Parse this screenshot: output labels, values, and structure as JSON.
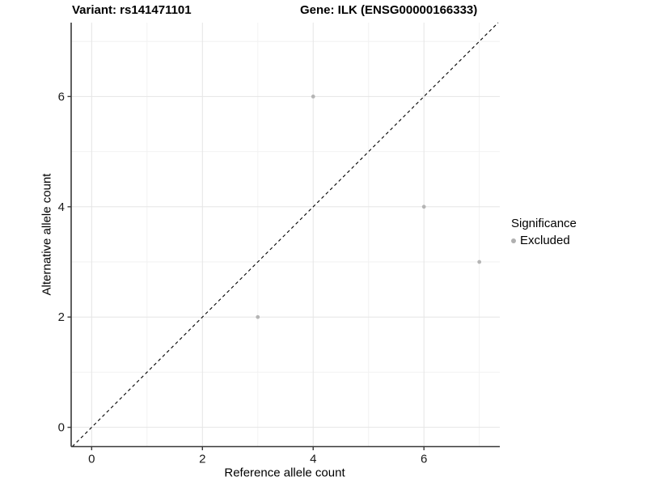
{
  "titles": {
    "left": "Variant: rs141471101",
    "right": "Gene: ILK (ENSG00000166333)"
  },
  "chart_data": {
    "type": "scatter",
    "title_left": "Variant: rs141471101",
    "title_right": "Gene: ILK (ENSG00000166333)",
    "xlabel": "Reference allele count",
    "ylabel": "Alternative allele count",
    "points": [
      {
        "x": 3,
        "y": 2
      },
      {
        "x": 4,
        "y": 6
      },
      {
        "x": 6,
        "y": 4
      },
      {
        "x": 7,
        "y": 3
      }
    ],
    "series_name": "Excluded",
    "x_ticks": [
      0,
      2,
      4,
      6
    ],
    "y_ticks": [
      0,
      2,
      4,
      6
    ],
    "x_minor_ticks": [
      1,
      3,
      5,
      7
    ],
    "y_minor_ticks": [
      1,
      3,
      5,
      7
    ],
    "xlim": [
      -0.37,
      7.37
    ],
    "ylim": [
      -0.35,
      7.34
    ],
    "grid": true,
    "reference_line": {
      "slope": 1,
      "intercept": 0,
      "style": "dashed",
      "color": "#000000"
    },
    "legend": {
      "position": "right",
      "title": "Significance",
      "items": [
        {
          "label": "Excluded",
          "color": "#b0b0b0"
        }
      ]
    },
    "colors": {
      "point": "#b5b5b5",
      "grid_major": "#e5e5e5",
      "grid_minor": "#f2f2f2",
      "axis_line": "#383838",
      "tick_text": "#1a1a1a"
    }
  }
}
